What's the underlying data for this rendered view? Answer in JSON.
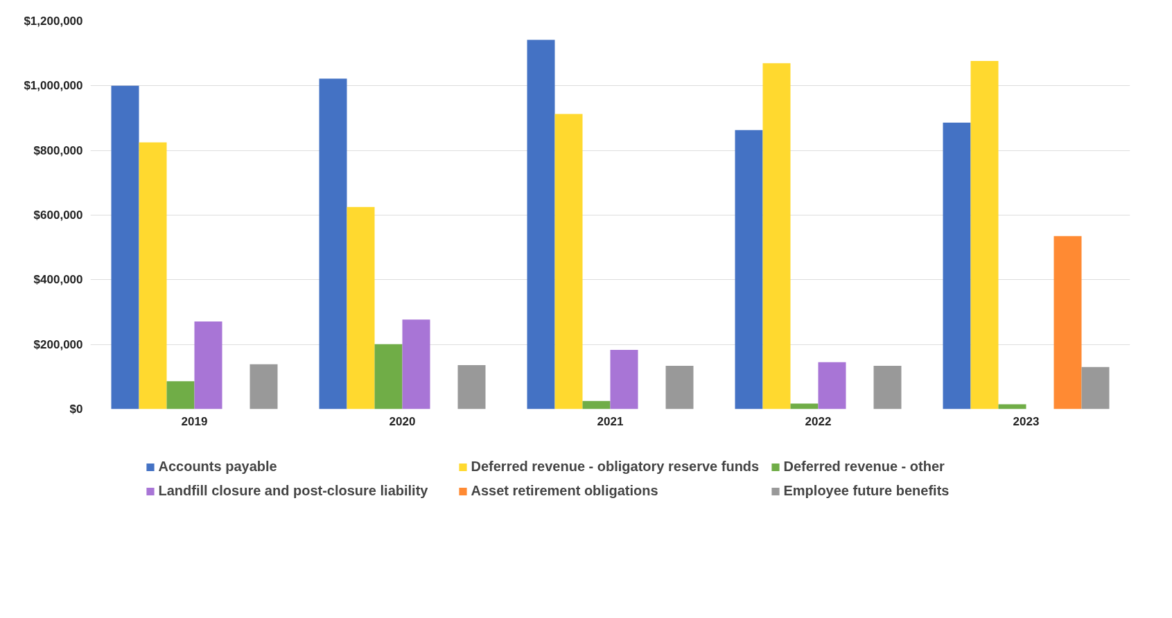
{
  "chart_data": {
    "type": "bar",
    "categories": [
      "2019",
      "2020",
      "2021",
      "2022",
      "2023"
    ],
    "series": [
      {
        "name": "Accounts payable",
        "color": "#4472c4",
        "values": [
          1000000,
          1022000,
          1142000,
          863000,
          886000
        ]
      },
      {
        "name": "Deferred revenue - obligatory reserve funds",
        "color": "#ffd92f",
        "values": [
          825000,
          625000,
          913000,
          1070000,
          1077000
        ]
      },
      {
        "name": "Deferred revenue - other",
        "color": "#70ad47",
        "values": [
          86000,
          201000,
          25000,
          17000,
          15000
        ]
      },
      {
        "name": "Landfill closure and post-closure liability",
        "color": "#a875d6",
        "values": [
          271000,
          277000,
          183000,
          145000,
          0
        ]
      },
      {
        "name": "Asset retirement obligations",
        "color": "#ff8a33",
        "values": [
          0,
          0,
          0,
          0,
          535000
        ]
      },
      {
        "name": "Employee future benefits",
        "color": "#999999",
        "values": [
          139000,
          136000,
          134000,
          134000,
          130000
        ]
      }
    ],
    "ylim": [
      0,
      1200000
    ],
    "yticks": [
      {
        "value": 0,
        "label": "$0"
      },
      {
        "value": 200000,
        "label": "$200,000"
      },
      {
        "value": 400000,
        "label": "$400,000"
      },
      {
        "value": 600000,
        "label": "$600,000"
      },
      {
        "value": 800000,
        "label": "$800,000"
      },
      {
        "value": 1000000,
        "label": "$1,000,000"
      },
      {
        "value": 1200000,
        "label": "$1,200,000"
      }
    ],
    "grid": "y",
    "legend": "bottom"
  }
}
